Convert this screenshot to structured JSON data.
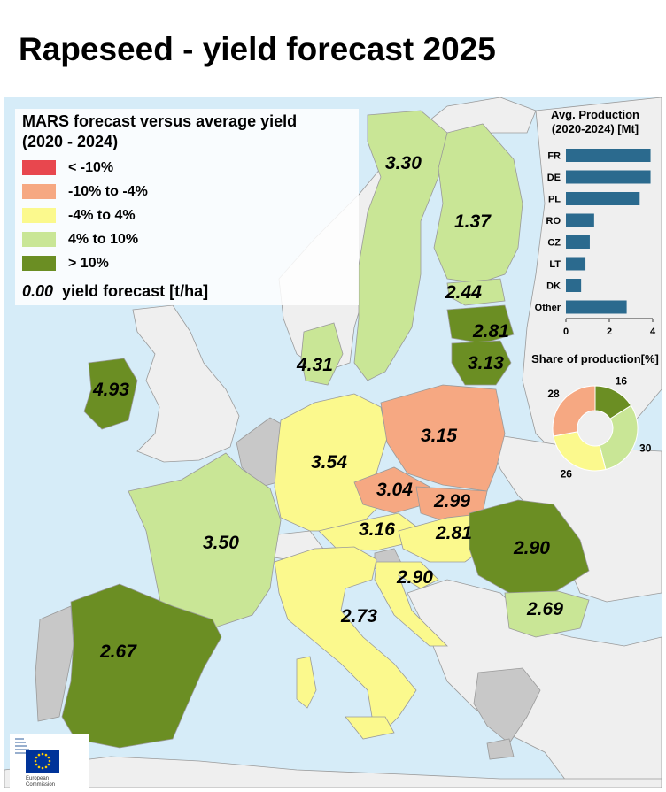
{
  "title": "Rapeseed - yield forecast 2025",
  "legend": {
    "title_line1": "MARS forecast versus average yield",
    "title_line2": "(2020 - 2024)",
    "items": [
      {
        "label": "< -10%",
        "color": "#e8474e"
      },
      {
        "label": "-10% to -4%",
        "color": "#f6a882"
      },
      {
        "label": "-4% to 4%",
        "color": "#fbf98d"
      },
      {
        "label": "4% to 10%",
        "color": "#c9e696"
      },
      {
        "label": "> 10%",
        "color": "#6b8e23"
      }
    ],
    "value_example": "0.00",
    "value_label": "yield forecast [t/ha]"
  },
  "colors": {
    "sea": "#d6ecf8",
    "non_eu": "#efefef",
    "no_data": "#c8c8c8",
    "bar": "#2b6a8e"
  },
  "country_values": {
    "ie": "4.93",
    "se": "3.30",
    "fi": "1.37",
    "ee": "2.44",
    "lv": "2.81",
    "lt": "3.13",
    "dk": "4.31",
    "pl": "3.15",
    "de": "3.54",
    "cz": "3.04",
    "sk": "2.99",
    "fr": "3.50",
    "at": "3.16",
    "hu": "2.81",
    "ro": "2.90",
    "hr": "2.90",
    "bg": "2.69",
    "it": "2.73",
    "es": "2.67"
  },
  "chart_data": [
    {
      "type": "bar",
      "orientation": "horizontal",
      "title": "Avg. Production (2020-2024) [Mt]",
      "categories": [
        "FR",
        "DE",
        "PL",
        "RO",
        "CZ",
        "LT",
        "DK",
        "Other"
      ],
      "values": [
        3.9,
        3.9,
        3.4,
        1.3,
        1.1,
        0.9,
        0.7,
        2.8
      ],
      "xlim": [
        0,
        4
      ],
      "xticks": [
        "0",
        "2",
        "4"
      ],
      "grid": false
    },
    {
      "type": "pie",
      "donut": true,
      "title": "Share of production[%]",
      "values": [
        16,
        30,
        26,
        28
      ],
      "colors": [
        "#6b8e23",
        "#c9e696",
        "#fbf98d",
        "#f6a882"
      ]
    }
  ],
  "logo": {
    "line1": "European",
    "line2": "Commission"
  }
}
